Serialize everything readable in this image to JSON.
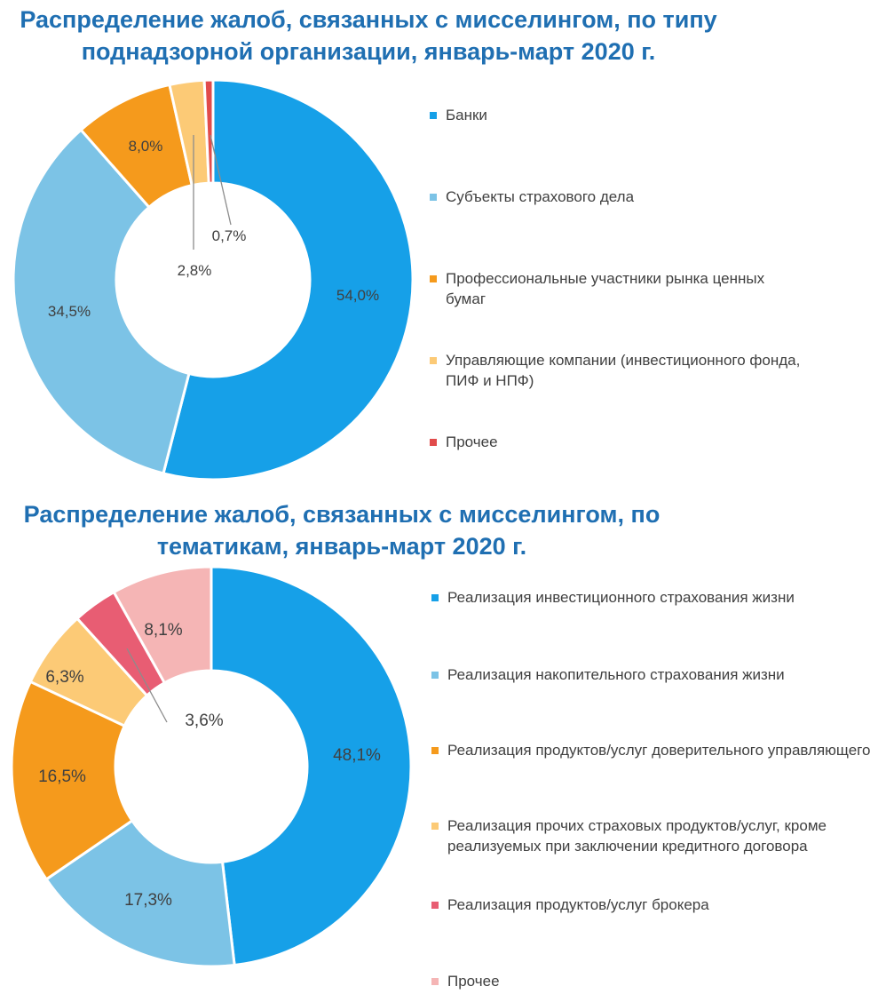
{
  "chart_data": [
    {
      "type": "pie",
      "title": "Распределение жалоб, связанных с мисселингом, по типу поднадзорной организации, январь-март 2020 г.",
      "categories": [
        "Банки",
        "Субъекты страхового дела",
        "Профессиональные участники рынка ценных бумаг",
        "Управляющие компании (инвестиционного фонда, ПИФ и НПФ)",
        "Прочее"
      ],
      "values": [
        54.0,
        34.5,
        8.0,
        2.8,
        0.7
      ],
      "value_labels": [
        "54,0%",
        "34,5%",
        "8,0%",
        "2,8%",
        "0,7%"
      ],
      "colors": [
        "#16a0e8",
        "#7cc3e6",
        "#f59a1c",
        "#fcca76",
        "#e14b4b"
      ],
      "legend_position": "right"
    },
    {
      "type": "pie",
      "title": "Распределение жалоб, связанных с мисселингом, по тематикам, январь-март 2020 г.",
      "categories": [
        "Реализация инвестиционного страхования жизни",
        "Реализация накопительного страхования жизни",
        "Реализация продуктов/услуг доверительного управляющего",
        "Реализация прочих страховых продуктов/услуг, кроме реализуемых при заключении кредитного договора",
        "Реализация продуктов/услуг брокера",
        "Прочее"
      ],
      "values": [
        48.1,
        17.3,
        16.5,
        6.3,
        3.6,
        8.1
      ],
      "value_labels": [
        "48,1%",
        "17,3%",
        "16,5%",
        "6,3%",
        "3,6%",
        "8,1%"
      ],
      "colors": [
        "#16a0e8",
        "#7cc3e6",
        "#f59a1c",
        "#fcca76",
        "#e85d73",
        "#f5b5b5"
      ],
      "legend_position": "right"
    }
  ]
}
